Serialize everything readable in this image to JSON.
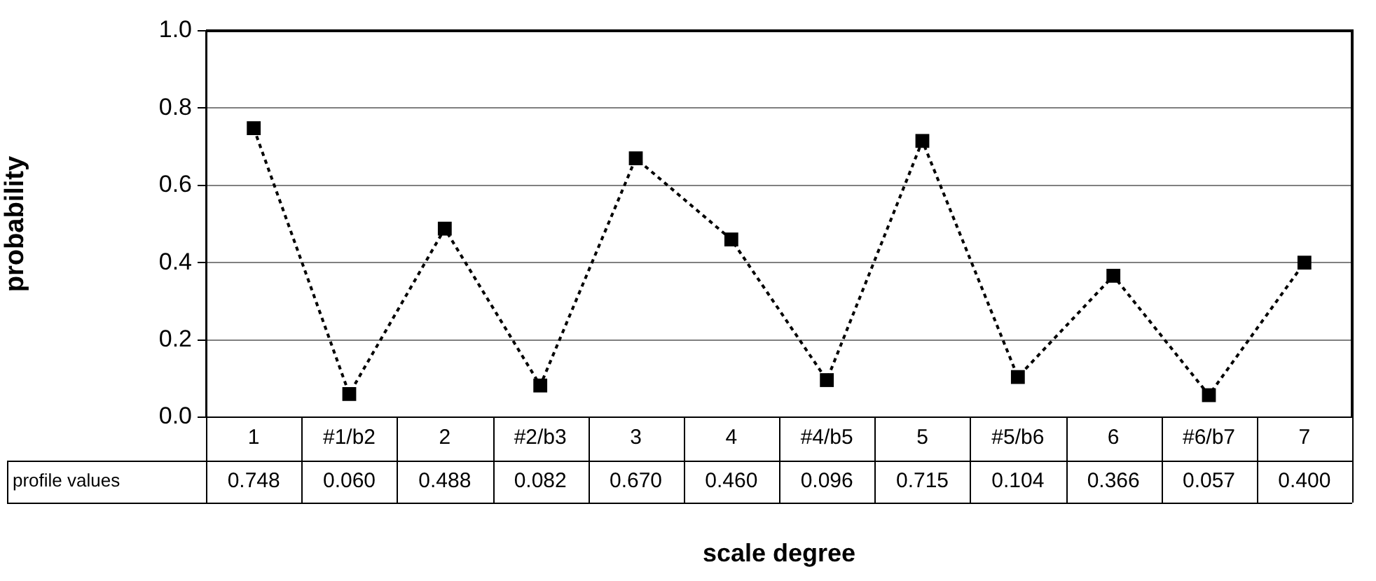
{
  "chart_data": {
    "type": "line",
    "xlabel": "scale degree",
    "ylabel": "probability",
    "categories": [
      "1",
      "#1/b2",
      "2",
      "#2/b3",
      "3",
      "4",
      "#4/b5",
      "5",
      "#5/b6",
      "6",
      "#6/b7",
      "7"
    ],
    "series": [
      {
        "name": "profile values",
        "color": "#000000",
        "values": [
          0.748,
          0.06,
          0.488,
          0.082,
          0.67,
          0.46,
          0.096,
          0.715,
          0.104,
          0.366,
          0.057,
          0.4
        ],
        "value_labels": [
          "0.748",
          "0.060",
          "0.488",
          "0.082",
          "0.670",
          "0.460",
          "0.096",
          "0.715",
          "0.104",
          "0.366",
          "0.057",
          "0.400"
        ]
      }
    ],
    "ylim": [
      0,
      1
    ],
    "yticks": [
      {
        "value": 0,
        "label": "0.0"
      },
      {
        "value": 0.2,
        "label": "0.2"
      },
      {
        "value": 0.4,
        "label": "0.4"
      },
      {
        "value": 0.6,
        "label": "0.6"
      },
      {
        "value": 0.8,
        "label": "0.8"
      },
      {
        "value": 1,
        "label": "1.0"
      }
    ],
    "grid": "y",
    "marker": "square",
    "line_style": "dotted"
  }
}
